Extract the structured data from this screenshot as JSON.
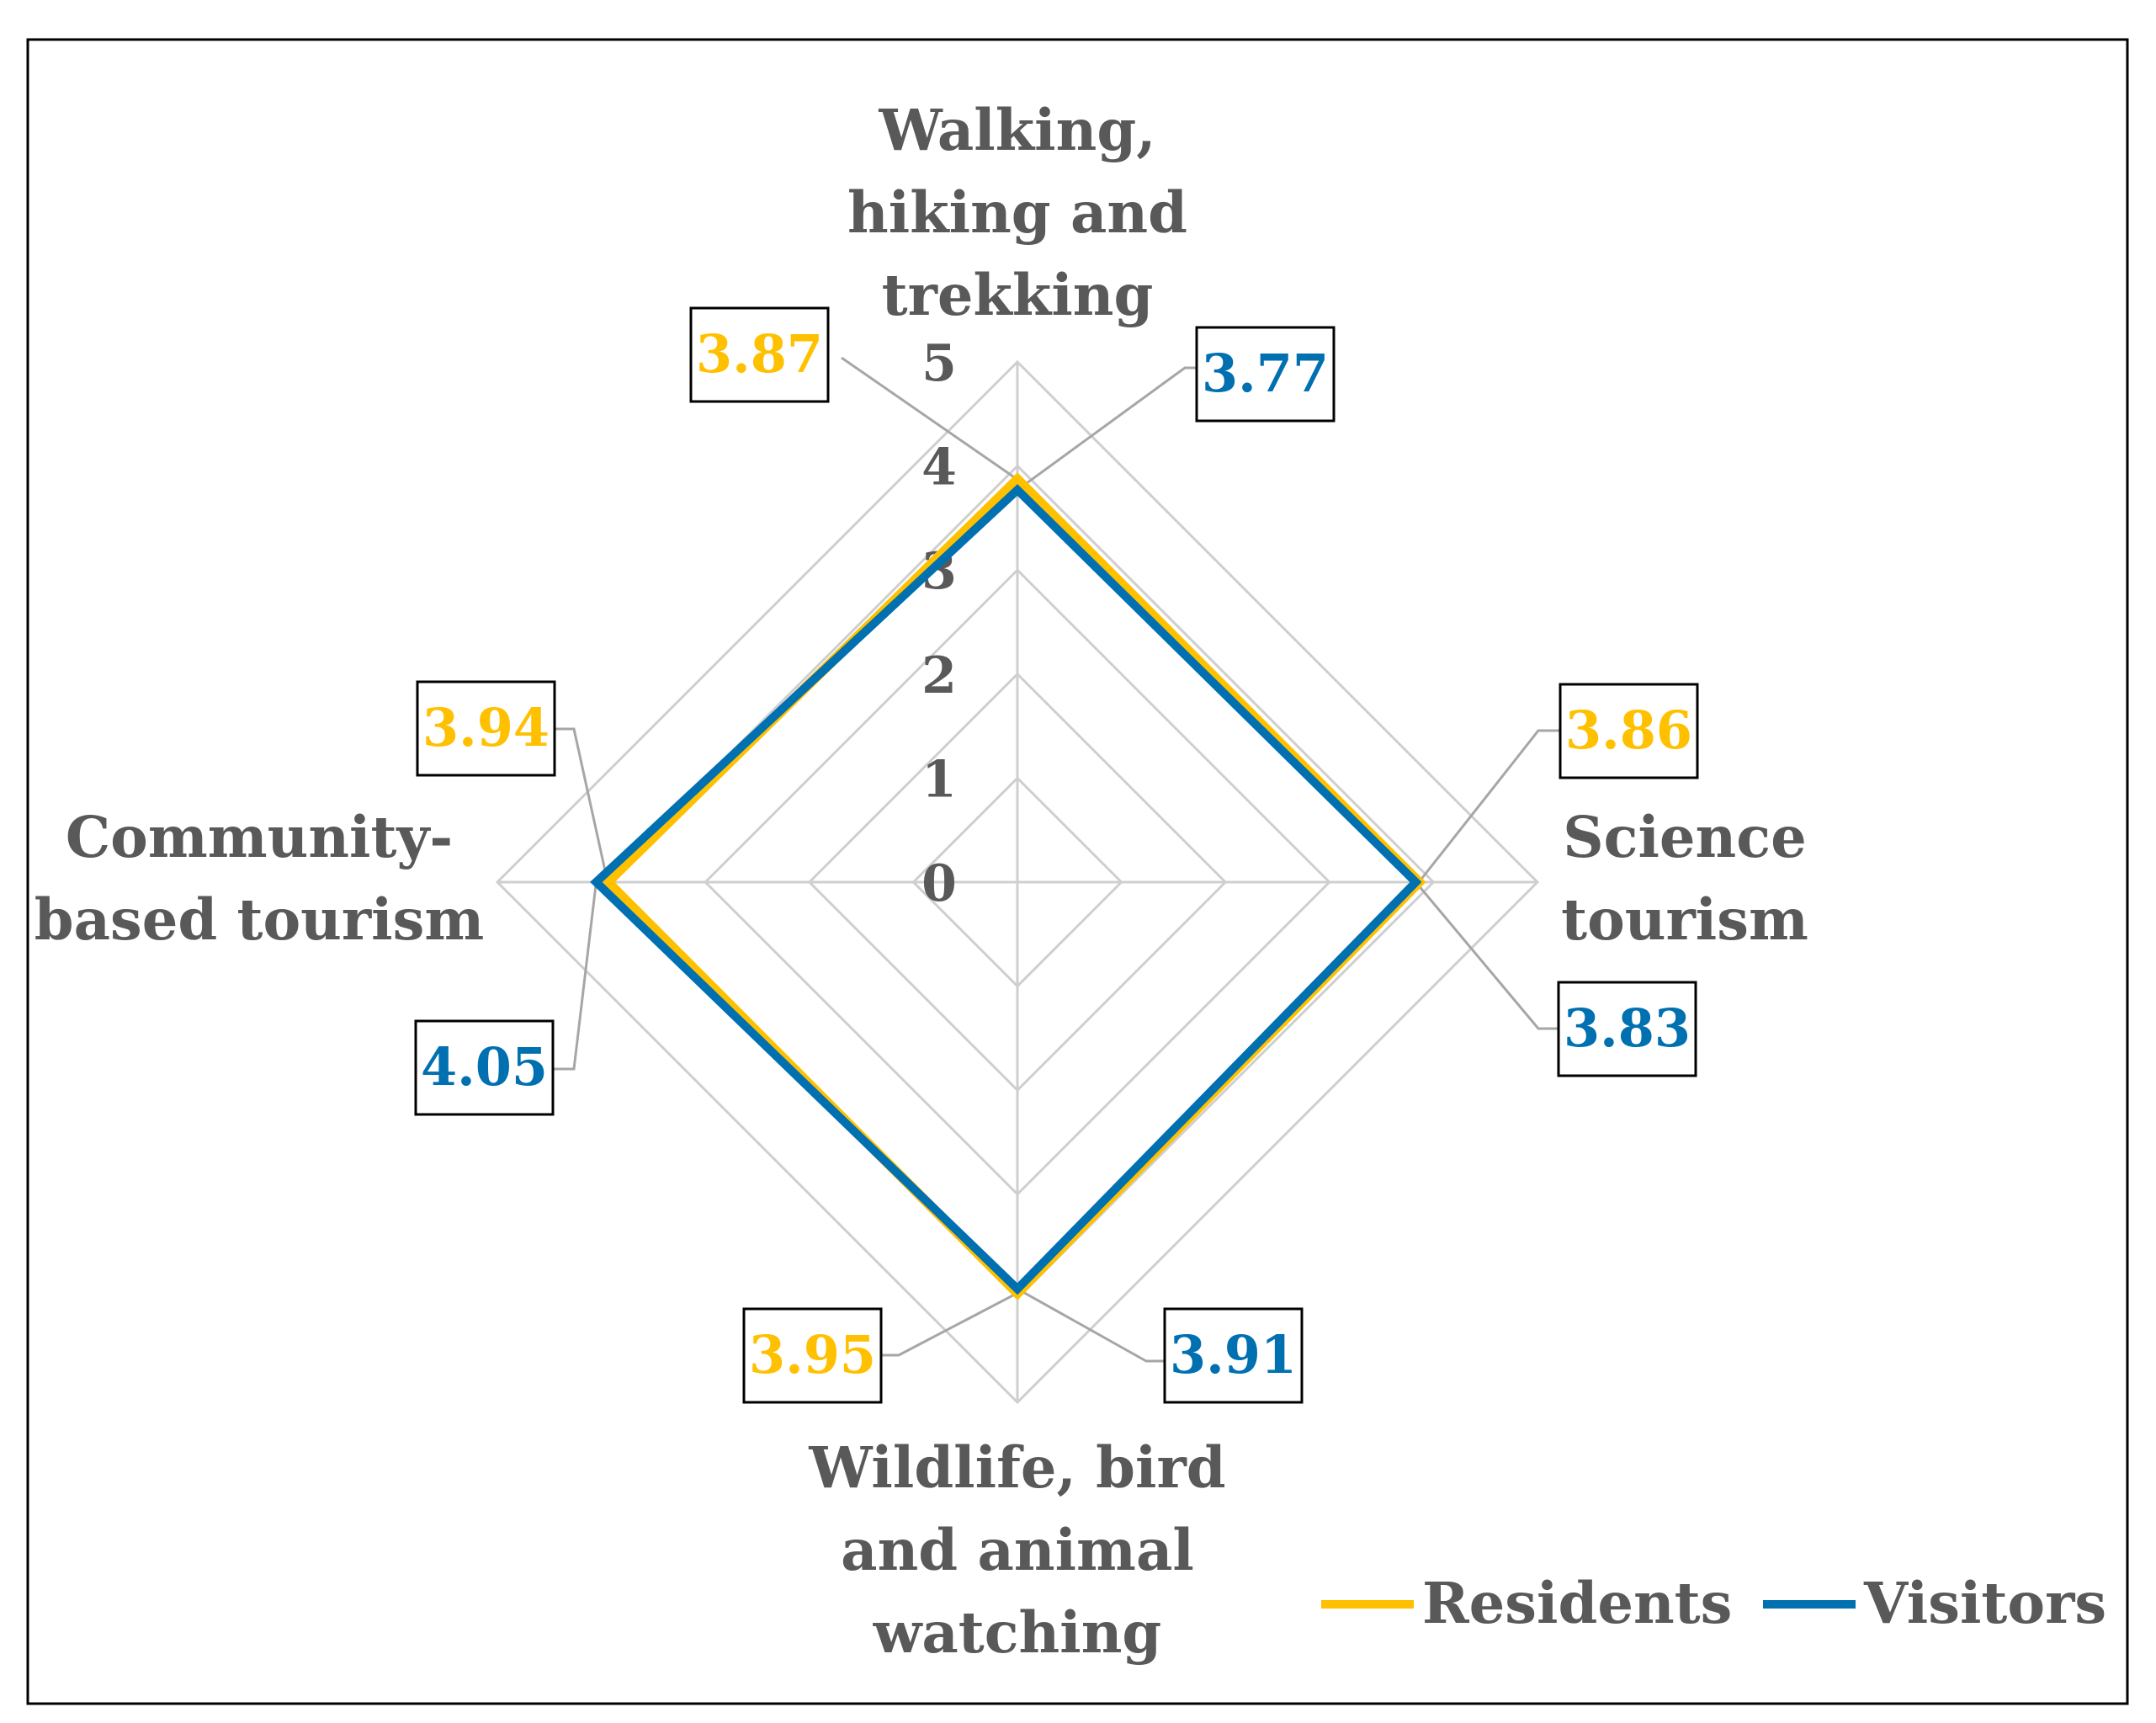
{
  "chart_data": {
    "type": "radar",
    "title": "",
    "axes": [
      {
        "label_lines": [
          "Walking,",
          "hiking and",
          "trekking"
        ]
      },
      {
        "label_lines": [
          "Science",
          "tourism"
        ]
      },
      {
        "label_lines": [
          "Wildlife, bird",
          "and animal",
          "watching"
        ]
      },
      {
        "label_lines": [
          "Community-",
          "based tourism"
        ]
      }
    ],
    "categories": [
      "Walking, hiking and trekking",
      "Science tourism",
      "Wildlife, bird and animal watching",
      "Community-based tourism"
    ],
    "rlim": [
      0,
      5
    ],
    "ticks": [
      "0",
      "1",
      "2",
      "3",
      "4",
      "5"
    ],
    "grid": true,
    "legend_position": "bottom-right",
    "series": [
      {
        "name": "Residents",
        "color": "#FFC000",
        "values": [
          3.87,
          3.86,
          3.95,
          3.94
        ],
        "labels": [
          "3.87",
          "3.86",
          "3.95",
          "3.94"
        ]
      },
      {
        "name": "Visitors",
        "color": "#0070B0",
        "values": [
          3.77,
          3.83,
          3.91,
          4.05
        ],
        "labels": [
          "3.77",
          "3.83",
          "3.91",
          "4.05"
        ]
      }
    ]
  }
}
